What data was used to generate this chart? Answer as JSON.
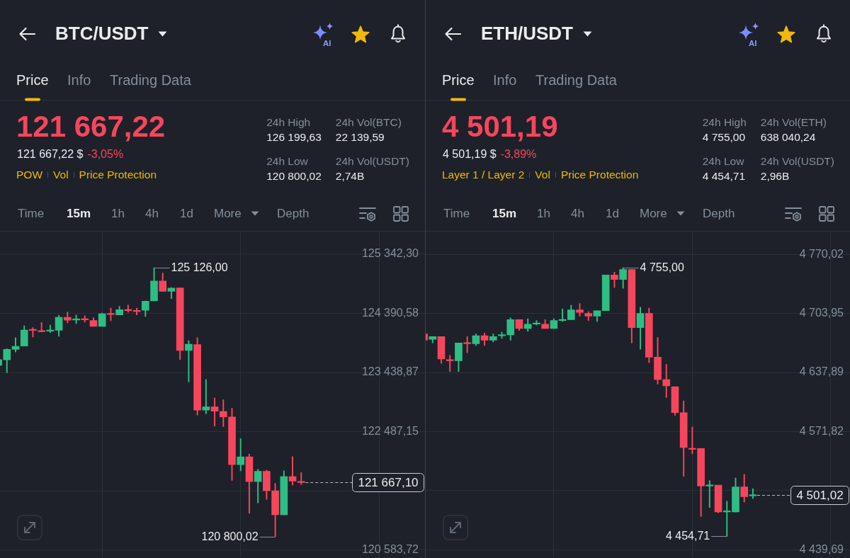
{
  "chart_data": [
    {
      "type": "candlestick",
      "title": "BTC/USDT",
      "subtitle": "121 667,22",
      "annotations": [
        "Price",
        "Info",
        "Trading Data",
        "121 667,22 $",
        "-3,05%",
        "POW",
        "Vol",
        "Price Protection",
        "24h High",
        "126 199,63",
        "24h Vol(BTC)",
        "22 139,59",
        "24h Low",
        "120 800,02",
        "24h Vol(USDT)",
        "2,74B",
        "AI",
        "Time",
        "15m",
        "1h",
        "4h",
        "1d",
        "More",
        "Depth",
        "125 126,00",
        "120 800,02"
      ],
      "categories": [
        null,
        null,
        null,
        null,
        null,
        null,
        null,
        null,
        null,
        null,
        null,
        null,
        null,
        null,
        null,
        null,
        null,
        null,
        null,
        null,
        null,
        null,
        null,
        null,
        null,
        null,
        null,
        null,
        null,
        null,
        null,
        null,
        null,
        null,
        null,
        null
      ],
      "ohlc": [
        [
          123553,
          123664,
          123535,
          123646
        ],
        [
          123642,
          123819,
          123435,
          123811
        ],
        [
          123811,
          124000,
          123767,
          123859
        ],
        [
          123863,
          124191,
          123863,
          124121
        ],
        [
          124125,
          124162,
          124011,
          124114
        ],
        [
          124107,
          124243,
          124096,
          124096
        ],
        [
          124103,
          124203,
          124081,
          124114
        ],
        [
          124118,
          124357,
          124022,
          124328
        ],
        [
          124328,
          124409,
          124239,
          124280
        ],
        [
          124284,
          124365,
          124225,
          124302
        ],
        [
          124302,
          124350,
          124250,
          124287
        ],
        [
          124276,
          124321,
          124180,
          124180
        ],
        [
          124180,
          124394,
          124180,
          124383
        ],
        [
          124383,
          124475,
          124273,
          124372
        ],
        [
          124365,
          124505,
          124365,
          124450
        ],
        [
          124453,
          124523,
          124409,
          124435
        ],
        [
          124439,
          124475,
          124365,
          124420
        ],
        [
          124439,
          124590,
          124339,
          124586
        ],
        [
          124590,
          125126,
          124590,
          124911
        ],
        [
          124911,
          125040,
          124745,
          124745
        ],
        [
          124745,
          124807,
          124627,
          124796
        ],
        [
          124800,
          124800,
          123646,
          123793
        ],
        [
          123793,
          123952,
          123288,
          123893
        ],
        [
          123889,
          124000,
          122753,
          122834
        ],
        [
          122834,
          123325,
          122775,
          122886
        ],
        [
          122886,
          123029,
          122576,
          122816
        ],
        [
          122812,
          123000,
          122568,
          122723
        ],
        [
          122723,
          122863,
          121702,
          121956
        ],
        [
          121956,
          122373,
          121856,
          122081
        ],
        [
          122081,
          122126,
          121174,
          121683
        ],
        [
          121683,
          121882,
          121340,
          121849
        ],
        [
          121849,
          121868,
          121395,
          121536
        ],
        [
          121536,
          121654,
          120800.02,
          121148
        ],
        [
          121148,
          121856,
          121148,
          121764
        ],
        [
          121764,
          122085,
          121628,
          121690
        ],
        [
          121683,
          121827,
          121635,
          121667.1
        ]
      ],
      "colors": [
        "#2ebd85",
        "#2ebd85",
        "#2ebd85",
        "#2ebd85",
        "#f6465d",
        "#f6465d",
        "#2ebd85",
        "#2ebd85",
        "#f6465d",
        "#2ebd85",
        "#f6465d",
        "#f6465d",
        "#2ebd85",
        "#f6465d",
        "#2ebd85",
        "#f6465d",
        "#f6465d",
        "#2ebd85",
        "#2ebd85",
        "#f6465d",
        "#2ebd85",
        "#f6465d",
        "#2ebd85",
        "#f6465d",
        "#2ebd85",
        "#f6465d",
        "#f6465d",
        "#f6465d",
        "#2ebd85",
        "#f6465d",
        "#2ebd85",
        "#f6465d",
        "#f6465d",
        "#2ebd85",
        "#f6465d",
        "#f6465d"
      ],
      "ylim": [
        120460,
        125700
      ],
      "yticks": [
        {
          "value": 125342.3,
          "label": "125 342,30"
        },
        {
          "value": 124390.58,
          "label": "124 390,58"
        },
        {
          "value": 123438.87,
          "label": "123 438,87"
        },
        {
          "value": 122487.15,
          "label": "122 487,15"
        },
        {
          "value": 121535.44,
          "label": null
        },
        {
          "value": 120583.72,
          "label": "120 583,72"
        }
      ],
      "ref_lines": [
        {
          "axis": "y",
          "value": 121667.1,
          "label": "121 667,10",
          "line_style": "dashed"
        }
      ],
      "grid": true,
      "tick_labels": "y"
    },
    {
      "type": "candlestick",
      "title": "ETH/USDT",
      "subtitle": "4 501,19",
      "annotations": [
        "Price",
        "Info",
        "Trading Data",
        "4 501,19 $",
        "-3,89%",
        "Layer 1 / Layer 2",
        "Vol",
        "Price Protection",
        "24h High",
        "4 755,00",
        "24h Vol(ETH)",
        "638 040,24",
        "24h Low",
        "4 454,71",
        "24h Vol(USDT)",
        "2,96B",
        "AI",
        "Time",
        "15m",
        "1h",
        "4h",
        "1d",
        "More",
        "Depth",
        "4 755,00",
        "4 454,71"
      ],
      "categories": [
        null,
        null,
        null,
        null,
        null,
        null,
        null,
        null,
        null,
        null,
        null,
        null,
        null,
        null,
        null,
        null,
        null,
        null,
        null,
        null,
        null,
        null,
        null,
        null,
        null,
        null,
        null,
        null,
        null,
        null,
        null,
        null,
        null,
        null,
        null,
        null,
        null,
        null,
        null
      ],
      "ohlc": [
        [
          4681,
          4681,
          4674,
          4674
        ],
        [
          4675,
          4678,
          4671,
          4678
        ],
        [
          4678,
          4678,
          4648,
          4653
        ],
        [
          4652,
          4657,
          4639,
          4651
        ],
        [
          4651,
          4671,
          4639,
          4671
        ],
        [
          4671,
          4678,
          4660,
          4670
        ],
        [
          4670,
          4681,
          4668,
          4679
        ],
        [
          4679,
          4682,
          4668,
          4674
        ],
        [
          4674,
          4681,
          4672,
          4678
        ],
        [
          4679,
          4683,
          4676,
          4680
        ],
        [
          4680,
          4699,
          4674,
          4697
        ],
        [
          4697,
          4697,
          4685,
          4687
        ],
        [
          4687,
          4698,
          4684,
          4692
        ],
        [
          4692,
          4696,
          4691,
          4693
        ],
        [
          4692,
          4697,
          4687,
          4687
        ],
        [
          4687,
          4698,
          4687,
          4696
        ],
        [
          4696,
          4709,
          4695,
          4697
        ],
        [
          4697,
          4713,
          4697,
          4708
        ],
        [
          4708,
          4715,
          4701,
          4705
        ],
        [
          4704,
          4706,
          4696,
          4701
        ],
        [
          4701,
          4707,
          4695,
          4707
        ],
        [
          4707,
          4747,
          4707,
          4747
        ],
        [
          4747,
          4750,
          4733,
          4742
        ],
        [
          4742,
          4755,
          4732,
          4753
        ],
        [
          4753,
          4753,
          4671,
          4688
        ],
        [
          4688,
          4711,
          4664,
          4704
        ],
        [
          4704,
          4710,
          4649,
          4655
        ],
        [
          4655,
          4677,
          4625,
          4630
        ],
        [
          4630,
          4647,
          4610,
          4623
        ],
        [
          4622,
          4622,
          4590,
          4593
        ],
        [
          4593,
          4606,
          4522,
          4554
        ],
        [
          4553,
          4577,
          4547,
          4552
        ],
        [
          4553,
          4553,
          4477,
          4511
        ],
        [
          4511,
          4517,
          4487,
          4512
        ],
        [
          4512,
          4512,
          4481,
          4482
        ],
        [
          4482,
          4494,
          4454.71,
          4483
        ],
        [
          4482,
          4520,
          4482,
          4510
        ],
        [
          4510,
          4524,
          4493,
          4499
        ],
        [
          4500,
          4508,
          4497,
          4501.02
        ]
      ],
      "colors": [
        "#f6465d",
        "#2ebd85",
        "#f6465d",
        "#f6465d",
        "#2ebd85",
        "#f6465d",
        "#2ebd85",
        "#f6465d",
        "#2ebd85",
        "#2ebd85",
        "#2ebd85",
        "#f6465d",
        "#2ebd85",
        "#2ebd85",
        "#f6465d",
        "#2ebd85",
        "#2ebd85",
        "#2ebd85",
        "#f6465d",
        "#f6465d",
        "#2ebd85",
        "#2ebd85",
        "#f6465d",
        "#2ebd85",
        "#f6465d",
        "#2ebd85",
        "#f6465d",
        "#f6465d",
        "#f6465d",
        "#f6465d",
        "#f6465d",
        "#f6465d",
        "#f6465d",
        "#2ebd85",
        "#f6465d",
        "#2ebd85",
        "#2ebd85",
        "#f6465d",
        "#2ebd85"
      ],
      "ylim": [
        4431,
        4795
      ],
      "yticks": [
        {
          "value": 4770.02,
          "label": "4 770,02"
        },
        {
          "value": 4703.95,
          "label": "4 703,95"
        },
        {
          "value": 4637.89,
          "label": "4 637,89"
        },
        {
          "value": 4571.82,
          "label": "4 571,82"
        },
        {
          "value": 4505.76,
          "label": null
        },
        {
          "value": 4439.69,
          "label": "4 439,69"
        }
      ],
      "ref_lines": [
        {
          "axis": "y",
          "value": 4501.02,
          "label": "4 501,02",
          "line_style": "dashed"
        }
      ],
      "grid": true,
      "tick_labels": "y"
    }
  ]
}
